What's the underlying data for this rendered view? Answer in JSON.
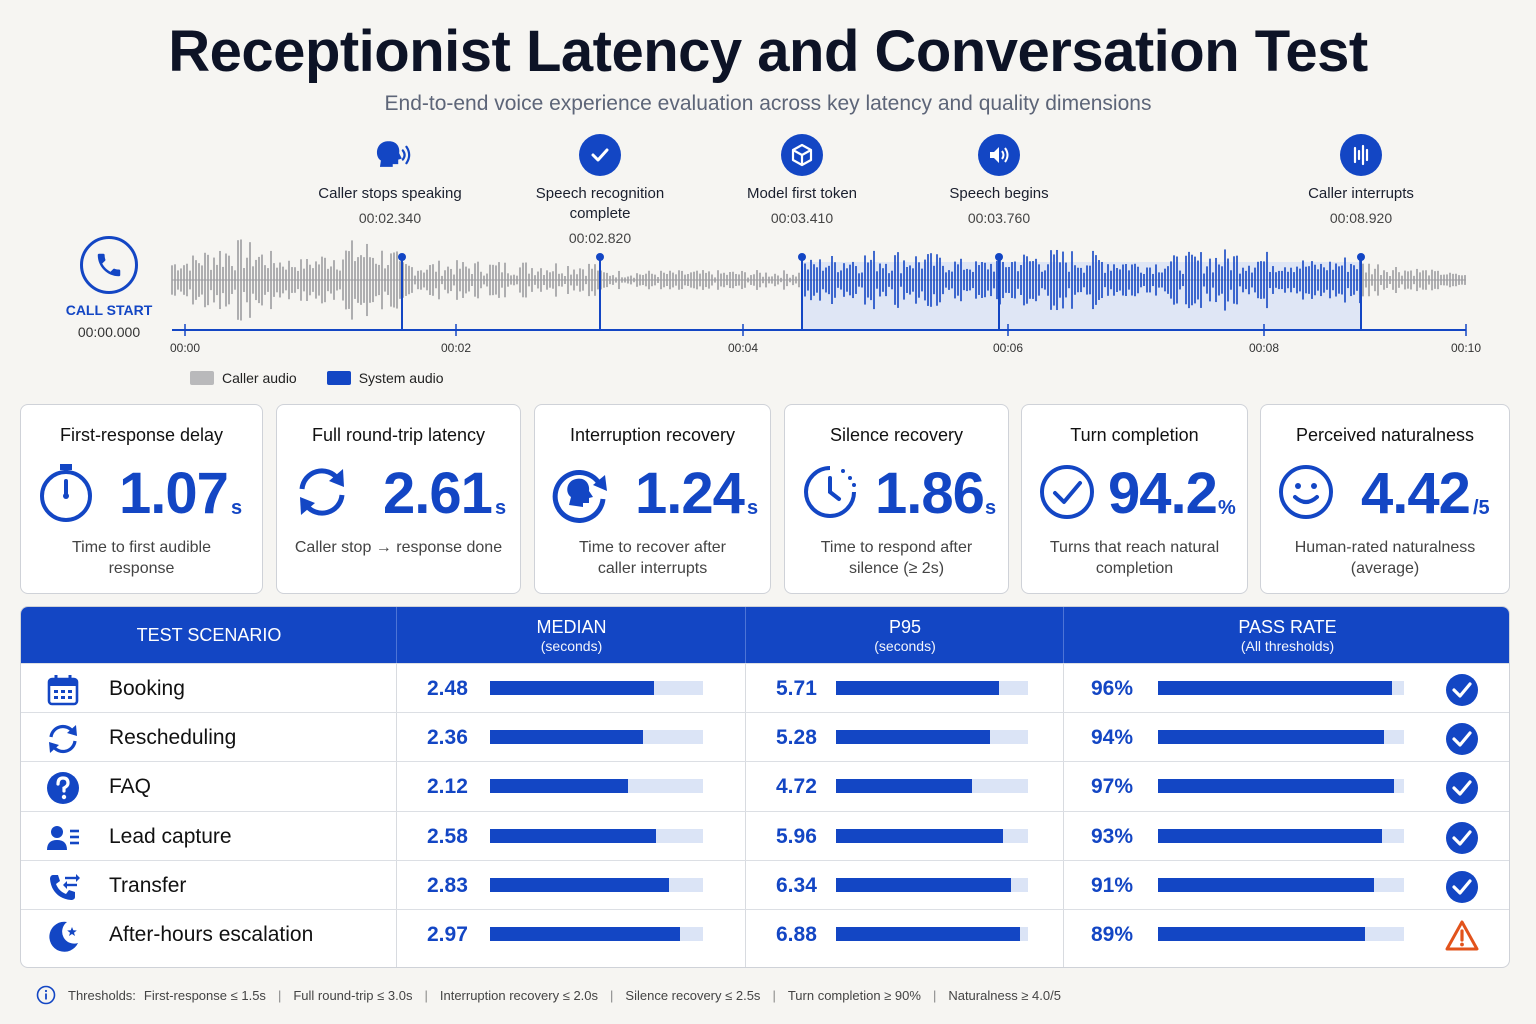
{
  "header": {
    "title": "Receptionist Latency and Conversation Test",
    "subtitle": "End-to-end voice experience evaluation across key latency and quality dimensions"
  },
  "timeline": {
    "call_start_label": "CALL START",
    "call_start_time": "00:00.000",
    "ticks": [
      "00:00",
      "00:02",
      "00:04",
      "00:06",
      "00:08",
      "00:10"
    ],
    "events": [
      {
        "name": "Caller stops speaking",
        "time": "00:02.340",
        "icon": "speaking-head-icon"
      },
      {
        "name": "Speech recognition complete",
        "time": "00:02.820",
        "icon": "checkmark-icon"
      },
      {
        "name": "Model first token",
        "time": "00:03.410",
        "icon": "cube-icon"
      },
      {
        "name": "Speech begins",
        "time": "00:03.760",
        "icon": "speaker-icon"
      },
      {
        "name": "Caller interrupts",
        "time": "00:08.920",
        "icon": "equalizer-icon"
      }
    ],
    "legend": [
      {
        "label": "Caller audio",
        "color": "#b9b9bb"
      },
      {
        "label": "System audio",
        "color": "#1346c4"
      }
    ]
  },
  "kpis": [
    {
      "title": "First-response delay",
      "value": "1.07",
      "unit": "s",
      "desc": "Time to first audible response",
      "icon": "stopwatch-icon"
    },
    {
      "title": "Full round-trip latency",
      "value": "2.61",
      "unit": "s",
      "desc": "Caller stop → response done",
      "icon": "refresh-arrows-icon"
    },
    {
      "title": "Interruption recovery",
      "value": "1.24",
      "unit": "s",
      "desc": "Time to recover after caller interrupts",
      "icon": "head-recover-icon"
    },
    {
      "title": "Silence recovery",
      "value": "1.86",
      "unit": "s",
      "desc": "Time to respond after silence (≥ 2s)",
      "icon": "clock-icon"
    },
    {
      "title": "Turn completion",
      "value": "94.2",
      "unit": "%",
      "desc": "Turns that reach natural completion",
      "icon": "check-circle-icon"
    },
    {
      "title": "Perceived naturalness",
      "value": "4.42",
      "unit": "/5",
      "desc": "Human-rated naturalness (average)",
      "icon": "smiley-icon"
    }
  ],
  "table": {
    "headers": [
      {
        "main": "TEST SCENARIO",
        "sub": ""
      },
      {
        "main": "MEDIAN",
        "sub": "(seconds)"
      },
      {
        "main": "P95",
        "sub": "(seconds)"
      },
      {
        "main": "PASS RATE",
        "sub": "(All thresholds)"
      }
    ],
    "rows": [
      {
        "name": "Booking",
        "icon": "calendar-icon",
        "median": "2.48",
        "median_fill": 0.77,
        "p95": "5.71",
        "p95_fill": 0.85,
        "pass": "96%",
        "pass_fill": 0.95,
        "status": "pass"
      },
      {
        "name": "Rescheduling",
        "icon": "refresh-icon",
        "median": "2.36",
        "median_fill": 0.72,
        "p95": "5.28",
        "p95_fill": 0.8,
        "pass": "94%",
        "pass_fill": 0.92,
        "status": "pass"
      },
      {
        "name": "FAQ",
        "icon": "question-icon",
        "median": "2.12",
        "median_fill": 0.65,
        "p95": "4.72",
        "p95_fill": 0.71,
        "pass": "97%",
        "pass_fill": 0.96,
        "status": "pass"
      },
      {
        "name": "Lead capture",
        "icon": "contact-card-icon",
        "median": "2.58",
        "median_fill": 0.78,
        "p95": "5.96",
        "p95_fill": 0.87,
        "pass": "93%",
        "pass_fill": 0.91,
        "status": "pass"
      },
      {
        "name": "Transfer",
        "icon": "phone-transfer-icon",
        "median": "2.83",
        "median_fill": 0.84,
        "p95": "6.34",
        "p95_fill": 0.91,
        "pass": "91%",
        "pass_fill": 0.88,
        "status": "pass"
      },
      {
        "name": "After-hours escalation",
        "icon": "moon-icon",
        "median": "2.97",
        "median_fill": 0.89,
        "p95": "6.88",
        "p95_fill": 0.96,
        "pass": "89%",
        "pass_fill": 0.84,
        "status": "warning"
      }
    ]
  },
  "footer": {
    "label": "Thresholds:",
    "items": [
      "First-response ≤ 1.5s",
      "Full round-trip ≤ 3.0s",
      "Interruption recovery ≤ 2.0s",
      "Silence recovery ≤ 2.5s",
      "Turn completion ≥ 90%",
      "Naturalness ≥ 4.0/5"
    ]
  },
  "colors": {
    "accent": "#1346c4",
    "caller": "#b9b9bb",
    "system_fill": "#dfe6f5",
    "warning": "#e2531c"
  }
}
